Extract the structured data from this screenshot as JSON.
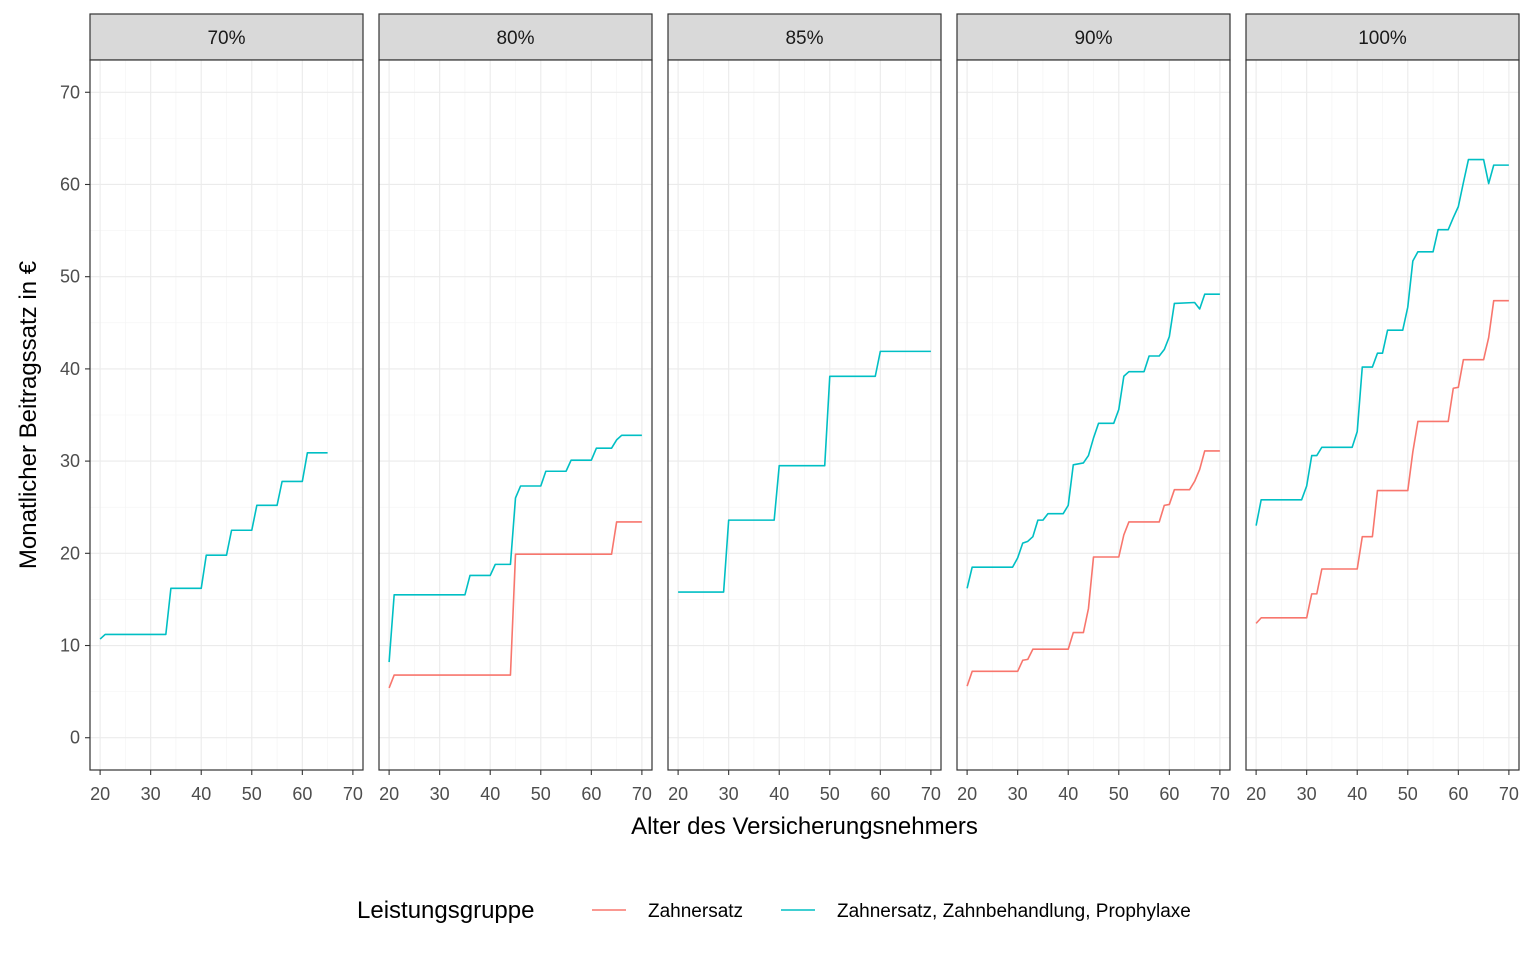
{
  "chart_data": {
    "type": "line",
    "xlabel": "Alter des Versicherungsnehmers",
    "ylabel": "Monatlicher Beitragssatz in €",
    "xlim": [
      18,
      72
    ],
    "ylim": [
      -3.5,
      73.5
    ],
    "x_ticks": [
      20,
      30,
      40,
      50,
      60,
      70
    ],
    "y_ticks": [
      0,
      10,
      20,
      30,
      40,
      50,
      60,
      70
    ],
    "grid": true,
    "legend": {
      "title": "Leistungsgruppe",
      "position": "bottom",
      "entries": [
        {
          "name": "Zahnersatz",
          "color": "#F8766D"
        },
        {
          "name": "Zahnersatz, Zahnbehandlung, Prophylaxe",
          "color": "#00BFC4"
        }
      ]
    },
    "facets": [
      {
        "label": "70%",
        "series": [
          {
            "name": "Zahnersatz, Zahnbehandlung, Prophylaxe",
            "color": "#00BFC4",
            "points": [
              [
                20,
                10.7
              ],
              [
                21,
                11.2
              ],
              [
                33,
                11.2
              ],
              [
                34,
                16.2
              ],
              [
                40,
                16.2
              ],
              [
                41,
                19.8
              ],
              [
                45,
                19.8
              ],
              [
                46,
                22.5
              ],
              [
                50,
                22.5
              ],
              [
                51,
                25.2
              ],
              [
                55,
                25.2
              ],
              [
                56,
                27.8
              ],
              [
                60,
                27.8
              ],
              [
                61,
                30.9
              ],
              [
                65,
                30.9
              ]
            ]
          }
        ]
      },
      {
        "label": "80%",
        "series": [
          {
            "name": "Zahnersatz",
            "color": "#F8766D",
            "points": [
              [
                20,
                5.4
              ],
              [
                21,
                6.8
              ],
              [
                44,
                6.8
              ],
              [
                45,
                19.9
              ],
              [
                64,
                19.9
              ],
              [
                65,
                23.4
              ],
              [
                70,
                23.4
              ]
            ]
          },
          {
            "name": "Zahnersatz, Zahnbehandlung, Prophylaxe",
            "color": "#00BFC4",
            "points": [
              [
                20,
                8.2
              ],
              [
                21,
                15.5
              ],
              [
                35,
                15.5
              ],
              [
                36,
                17.6
              ],
              [
                40,
                17.6
              ],
              [
                41,
                18.8
              ],
              [
                44,
                18.8
              ],
              [
                45,
                26
              ],
              [
                46,
                27.3
              ],
              [
                50,
                27.3
              ],
              [
                51,
                28.9
              ],
              [
                55,
                28.9
              ],
              [
                56,
                30.1
              ],
              [
                60,
                30.1
              ],
              [
                61,
                31.4
              ],
              [
                64,
                31.4
              ],
              [
                65,
                32.3
              ],
              [
                66,
                32.8
              ],
              [
                70,
                32.8
              ]
            ]
          }
        ]
      },
      {
        "label": "85%",
        "series": [
          {
            "name": "Zahnersatz, Zahnbehandlung, Prophylaxe",
            "color": "#00BFC4",
            "points": [
              [
                20,
                15.8
              ],
              [
                29,
                15.8
              ],
              [
                30,
                23.6
              ],
              [
                39,
                23.6
              ],
              [
                40,
                29.5
              ],
              [
                49,
                29.5
              ],
              [
                50,
                39.2
              ],
              [
                59,
                39.2
              ],
              [
                60,
                41.9
              ],
              [
                70,
                41.9
              ]
            ]
          }
        ]
      },
      {
        "label": "90%",
        "series": [
          {
            "name": "Zahnersatz",
            "color": "#F8766D",
            "points": [
              [
                20,
                5.6
              ],
              [
                21,
                7.2
              ],
              [
                30,
                7.2
              ],
              [
                31,
                8.4
              ],
              [
                32,
                8.5
              ],
              [
                33,
                9.6
              ],
              [
                40,
                9.6
              ],
              [
                41,
                11.4
              ],
              [
                43,
                11.4
              ],
              [
                44,
                14
              ],
              [
                45,
                19.6
              ],
              [
                50,
                19.6
              ],
              [
                51,
                22
              ],
              [
                52,
                23.4
              ],
              [
                58,
                23.4
              ],
              [
                59,
                25.2
              ],
              [
                60,
                25.3
              ],
              [
                61,
                26.9
              ],
              [
                64,
                26.9
              ],
              [
                65,
                27.8
              ],
              [
                66,
                29.1
              ],
              [
                67,
                31.1
              ],
              [
                70,
                31.1
              ]
            ]
          },
          {
            "name": "Zahnersatz, Zahnbehandlung, Prophylaxe",
            "color": "#00BFC4",
            "points": [
              [
                20,
                16.2
              ],
              [
                21,
                18.5
              ],
              [
                29,
                18.5
              ],
              [
                30,
                19.5
              ],
              [
                31,
                21.1
              ],
              [
                32,
                21.3
              ],
              [
                33,
                21.8
              ],
              [
                34,
                23.6
              ],
              [
                35,
                23.6
              ],
              [
                36,
                24.3
              ],
              [
                39,
                24.3
              ],
              [
                40,
                25.2
              ],
              [
                41,
                29.6
              ],
              [
                43,
                29.8
              ],
              [
                44,
                30.6
              ],
              [
                45,
                32.5
              ],
              [
                46,
                34.1
              ],
              [
                49,
                34.1
              ],
              [
                50,
                35.6
              ],
              [
                51,
                39.2
              ],
              [
                52,
                39.7
              ],
              [
                55,
                39.7
              ],
              [
                56,
                41.4
              ],
              [
                58,
                41.4
              ],
              [
                59,
                42.1
              ],
              [
                60,
                43.5
              ],
              [
                61,
                47.1
              ],
              [
                65,
                47.2
              ],
              [
                66,
                46.5
              ],
              [
                67,
                48.1
              ],
              [
                70,
                48.1
              ]
            ]
          }
        ]
      },
      {
        "label": "100%",
        "series": [
          {
            "name": "Zahnersatz",
            "color": "#F8766D",
            "points": [
              [
                20,
                12.4
              ],
              [
                21,
                13
              ],
              [
                30,
                13
              ],
              [
                31,
                15.6
              ],
              [
                32,
                15.6
              ],
              [
                33,
                18.3
              ],
              [
                40,
                18.3
              ],
              [
                41,
                21.8
              ],
              [
                43,
                21.8
              ],
              [
                44,
                26.8
              ],
              [
                50,
                26.8
              ],
              [
                51,
                31
              ],
              [
                52,
                34.3
              ],
              [
                58,
                34.3
              ],
              [
                59,
                37.9
              ],
              [
                60,
                38
              ],
              [
                61,
                41
              ],
              [
                65,
                41
              ],
              [
                66,
                43.4
              ],
              [
                67,
                47.4
              ],
              [
                70,
                47.4
              ]
            ]
          },
          {
            "name": "Zahnersatz, Zahnbehandlung, Prophylaxe",
            "color": "#00BFC4",
            "points": [
              [
                20,
                23
              ],
              [
                21,
                25.8
              ],
              [
                29,
                25.8
              ],
              [
                30,
                27.3
              ],
              [
                31,
                30.6
              ],
              [
                32,
                30.6
              ],
              [
                33,
                31.5
              ],
              [
                39,
                31.5
              ],
              [
                40,
                33.2
              ],
              [
                41,
                40.2
              ],
              [
                43,
                40.2
              ],
              [
                44,
                41.7
              ],
              [
                45,
                41.7
              ],
              [
                46,
                44.2
              ],
              [
                49,
                44.2
              ],
              [
                50,
                46.7
              ],
              [
                51,
                51.7
              ],
              [
                52,
                52.7
              ],
              [
                55,
                52.7
              ],
              [
                56,
                55.1
              ],
              [
                58,
                55.1
              ],
              [
                59,
                56.4
              ],
              [
                60,
                57.6
              ],
              [
                61,
                60.2
              ],
              [
                62,
                62.7
              ],
              [
                65,
                62.7
              ],
              [
                66,
                60.1
              ],
              [
                67,
                62.1
              ],
              [
                70,
                62.1
              ]
            ]
          }
        ]
      }
    ]
  }
}
